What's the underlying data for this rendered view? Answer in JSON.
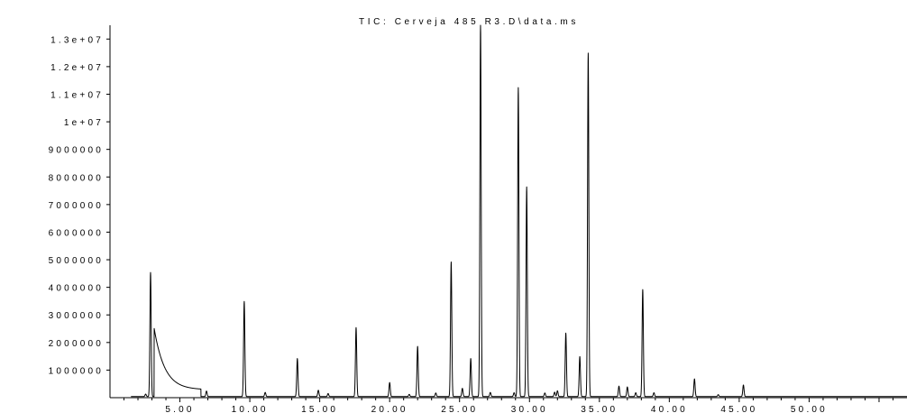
{
  "chart_data": {
    "type": "line",
    "title": "TIC: Cerveja 485 R3.D\\data.ms",
    "xlabel": "",
    "ylabel": "",
    "xlim": [
      0,
      57
    ],
    "ylim": [
      0,
      13500000
    ],
    "grid": false,
    "legend": "none",
    "line_color": "#000000",
    "x_ticks": [
      5,
      10,
      15,
      20,
      25,
      30,
      35,
      40,
      45,
      50
    ],
    "x_tick_labels": [
      "5.00",
      "10.00",
      "15.00",
      "20.00",
      "25.00",
      "30.00",
      "35.00",
      "40.00",
      "45.00",
      "50.00"
    ],
    "y_ticks": [
      1000000,
      2000000,
      3000000,
      4000000,
      5000000,
      6000000,
      7000000,
      8000000,
      9000000,
      10000000,
      11000000,
      12000000,
      13000000
    ],
    "y_tick_labels": [
      "1000000",
      "2000000",
      "3000000",
      "4000000",
      "5000000",
      "6000000",
      "7000000",
      "8000000",
      "9000000",
      "1e+07",
      "1.1e+07",
      "1.2e+07",
      "1.3e+07"
    ],
    "baseline": 40000,
    "solvent_tail": {
      "start": 3.15,
      "end": 6.5,
      "start_value": 2500000,
      "end_value": 250000,
      "decay": 0.8
    },
    "peaks": [
      {
        "x": 2.55,
        "y": 90000
      },
      {
        "x": 2.9,
        "y": 4500000
      },
      {
        "x": 6.9,
        "y": 200000
      },
      {
        "x": 9.6,
        "y": 3450000
      },
      {
        "x": 11.1,
        "y": 150000
      },
      {
        "x": 13.4,
        "y": 1380000
      },
      {
        "x": 14.9,
        "y": 230000
      },
      {
        "x": 15.6,
        "y": 110000
      },
      {
        "x": 17.6,
        "y": 2500000
      },
      {
        "x": 20.0,
        "y": 510000
      },
      {
        "x": 21.4,
        "y": 80000
      },
      {
        "x": 22.0,
        "y": 1820000
      },
      {
        "x": 23.3,
        "y": 130000
      },
      {
        "x": 24.4,
        "y": 4880000
      },
      {
        "x": 25.2,
        "y": 300000
      },
      {
        "x": 25.8,
        "y": 1380000
      },
      {
        "x": 26.5,
        "y": 13500000
      },
      {
        "x": 27.2,
        "y": 150000
      },
      {
        "x": 28.9,
        "y": 140000
      },
      {
        "x": 29.2,
        "y": 11200000
      },
      {
        "x": 29.8,
        "y": 7600000
      },
      {
        "x": 31.1,
        "y": 130000
      },
      {
        "x": 31.8,
        "y": 160000
      },
      {
        "x": 32.0,
        "y": 210000
      },
      {
        "x": 32.6,
        "y": 2300000
      },
      {
        "x": 33.6,
        "y": 1450000
      },
      {
        "x": 34.2,
        "y": 12450000
      },
      {
        "x": 36.4,
        "y": 380000
      },
      {
        "x": 37.0,
        "y": 350000
      },
      {
        "x": 37.6,
        "y": 140000
      },
      {
        "x": 38.1,
        "y": 3880000
      },
      {
        "x": 38.9,
        "y": 140000
      },
      {
        "x": 41.8,
        "y": 640000
      },
      {
        "x": 43.5,
        "y": 70000
      },
      {
        "x": 45.3,
        "y": 420000
      }
    ]
  }
}
